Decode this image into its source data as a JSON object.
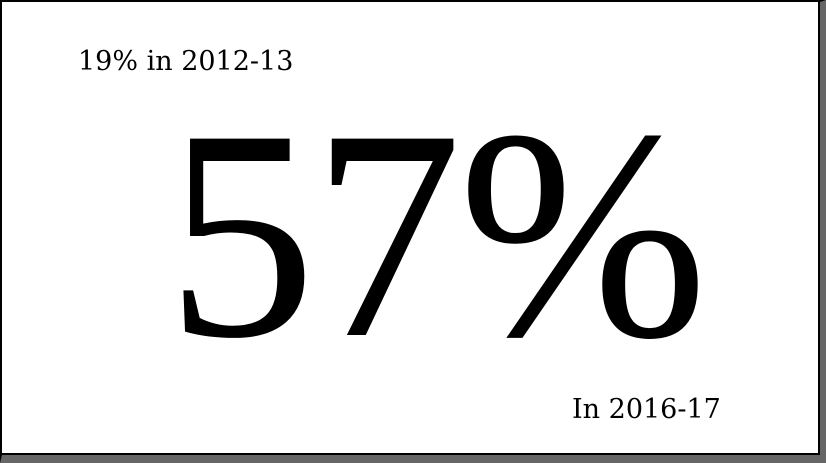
{
  "stat": {
    "previous": "19% in 2012-13",
    "value": "57%",
    "current_period": "In 2016-17"
  }
}
